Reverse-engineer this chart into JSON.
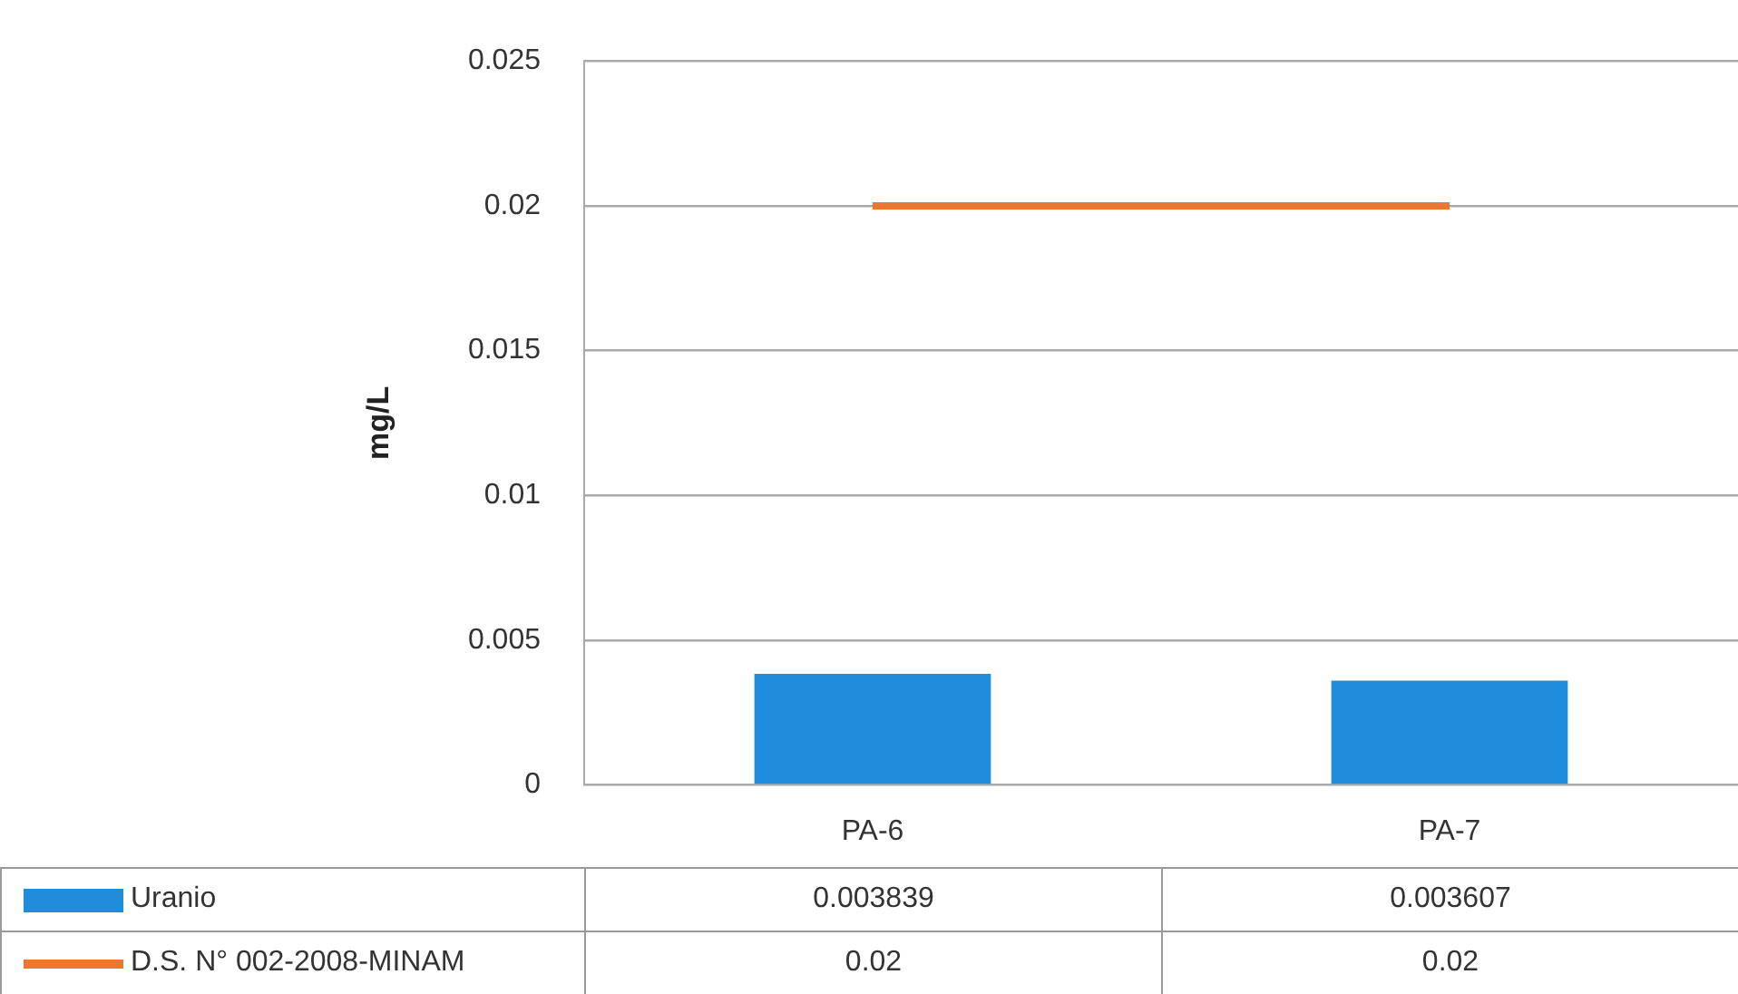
{
  "chart_data": {
    "type": "bar",
    "ylabel": "mg/L",
    "categories": [
      "PA-6",
      "PA-7"
    ],
    "series": [
      {
        "name": "Uranio",
        "color": "#1f8ddb",
        "values": [
          0.003839,
          0.003607
        ]
      },
      {
        "name": "D.S. N° 002-2008-MINAM",
        "type": "line",
        "color": "#ed7631",
        "values": [
          0.02,
          0.02
        ]
      }
    ],
    "ylim": [
      0,
      0.025
    ],
    "yticks": [
      0,
      0.005,
      0.01,
      0.015,
      0.02,
      0.025
    ],
    "grid": "y",
    "legend": "bottom",
    "data_labels": true,
    "marker": "none"
  }
}
